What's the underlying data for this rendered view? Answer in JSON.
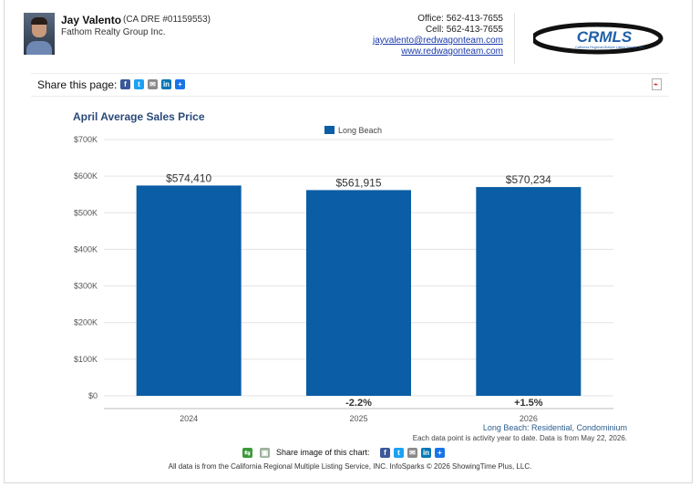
{
  "agent": {
    "name": "Jay Valento",
    "dre": "(CA DRE #01159553)",
    "company": "Fathom Realty Group Inc."
  },
  "contact": {
    "office": "Office: 562-413-7655",
    "cell": "Cell: 562-413-7655",
    "email": "jayvalento@redwagonteam.com",
    "website": "www.redwagonteam.com"
  },
  "logo": {
    "text": "CRMLS",
    "subtitle": "California Regional Multiple Listing Service, Inc."
  },
  "share_page": {
    "label": "Share this page:",
    "icons": [
      "facebook-icon",
      "twitter-icon",
      "email-icon",
      "linkedin-icon",
      "plus-icon"
    ]
  },
  "chart_data": {
    "type": "bar",
    "title": "April Average Sales Price",
    "legend": [
      "Long Beach"
    ],
    "legend_position": "top-center",
    "categories": [
      "2024",
      "2025",
      "2026"
    ],
    "series": [
      {
        "name": "Long Beach",
        "values": [
          574410,
          561915,
          570234
        ],
        "color": "#0b5da5"
      }
    ],
    "value_labels": [
      "$574,410",
      "$561,915",
      "$570,234"
    ],
    "change_labels": [
      "",
      "-2.2%",
      "+1.5%"
    ],
    "ylim": [
      0,
      700000
    ],
    "yticks": [
      "$0",
      "$100K",
      "$200K",
      "$300K",
      "$400K",
      "$500K",
      "$600K",
      "$700K"
    ],
    "grid": true,
    "xlabel": "",
    "ylabel": ""
  },
  "chart_footer": {
    "note": "Long Beach: Residential, Condominium",
    "sub": "Each data point is activity year to date. Data is from May 22, 2026."
  },
  "share_image": {
    "label": "Share image of this chart:"
  },
  "footer": {
    "text": "All data is from the California Regional Multiple Listing Service, INC. InfoSparks © 2026 ShowingTime Plus, LLC."
  }
}
